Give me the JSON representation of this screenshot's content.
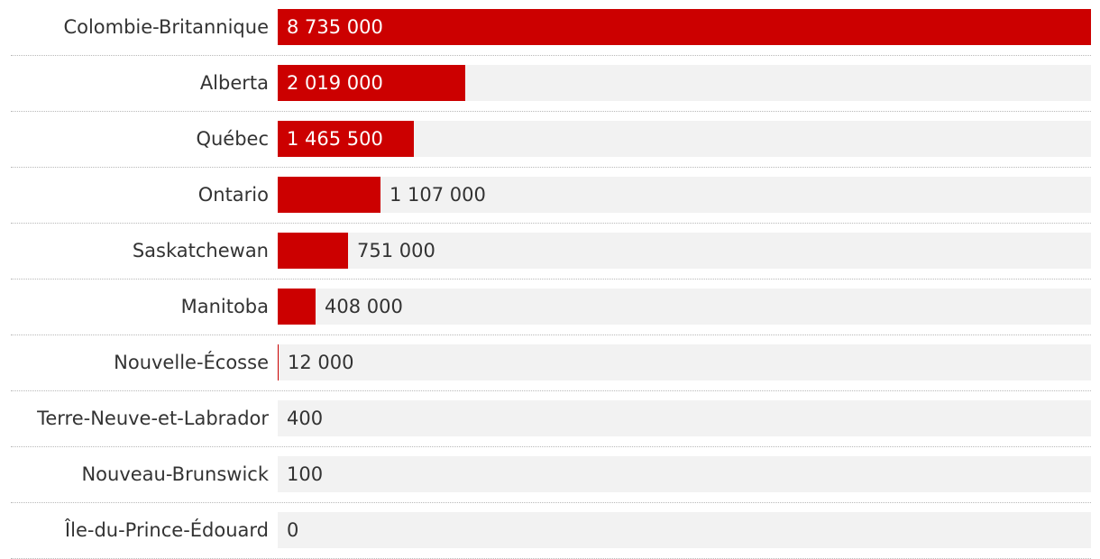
{
  "colors": {
    "bar": "#cc0000",
    "track": "#f2f2f2",
    "label": "#333333",
    "value_inside": "#ffffff",
    "value_outside": "#333333"
  },
  "chart_data": {
    "type": "bar",
    "orientation": "horizontal",
    "categories": [
      "Colombie-Britannique",
      "Alberta",
      "Québec",
      "Ontario",
      "Saskatchewan",
      "Manitoba",
      "Nouvelle-Écosse",
      "Terre-Neuve-et-Labrador",
      "Nouveau-Brunswick",
      "Île-du-Prince-Édouard"
    ],
    "values": [
      8735000,
      2019000,
      1465500,
      1107000,
      751000,
      408000,
      12000,
      400,
      100,
      0
    ],
    "value_labels": [
      "8 735 000",
      "2 019 000",
      "1 465 500",
      "1 107 000",
      "751 000",
      "408 000",
      "12 000",
      "400",
      "100",
      "0"
    ],
    "xlim": [
      0,
      8735000
    ],
    "grid": false,
    "legend": "none"
  }
}
